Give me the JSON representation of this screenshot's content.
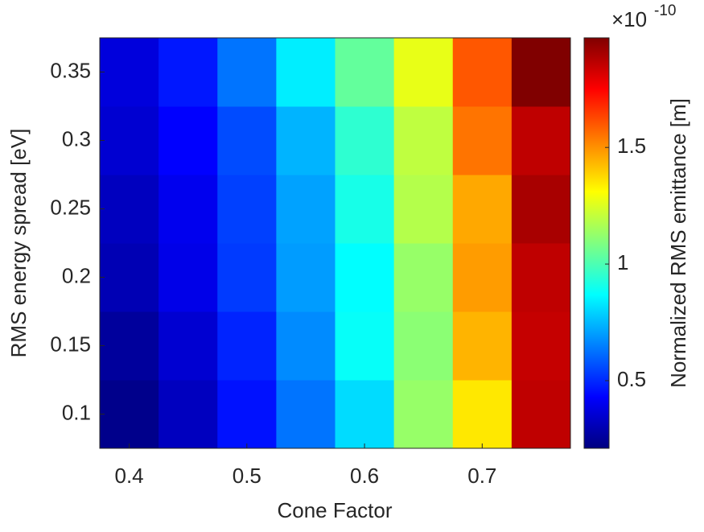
{
  "chart_data": {
    "type": "heatmap",
    "xlabel": "Cone Factor",
    "ylabel": "RMS energy spread [eV]",
    "colorbar_label": "Normalized RMS emittance [m]",
    "colorbar_multiplier": "×10",
    "colorbar_exponent": "-10",
    "colormap": "jet",
    "x": [
      0.4,
      0.45,
      0.5,
      0.55,
      0.6,
      0.65,
      0.7,
      0.75
    ],
    "y": [
      0.1,
      0.15,
      0.2,
      0.25,
      0.3,
      0.35
    ],
    "z": [
      [
        0.23,
        0.32,
        0.46,
        0.63,
        0.81,
        1.13,
        1.35,
        1.86
      ],
      [
        0.26,
        0.35,
        0.49,
        0.67,
        0.88,
        1.11,
        1.44,
        1.85
      ],
      [
        0.3,
        0.39,
        0.53,
        0.7,
        0.87,
        1.13,
        1.48,
        1.86
      ],
      [
        0.32,
        0.4,
        0.54,
        0.71,
        0.91,
        1.18,
        1.46,
        1.9
      ],
      [
        0.35,
        0.43,
        0.56,
        0.74,
        0.95,
        1.2,
        1.55,
        1.86
      ],
      [
        0.37,
        0.47,
        0.63,
        0.84,
        1.04,
        1.27,
        1.6,
        1.97
      ]
    ],
    "xlim": [
      0.375,
      0.775
    ],
    "ylim": [
      0.075,
      0.375
    ],
    "xticks": [
      0.4,
      0.5,
      0.6,
      0.7
    ],
    "yticks": [
      0.1,
      0.15,
      0.2,
      0.25,
      0.3,
      0.35
    ],
    "clim": [
      0.21,
      1.97
    ],
    "cticks": [
      0.5,
      1,
      1.5
    ]
  }
}
